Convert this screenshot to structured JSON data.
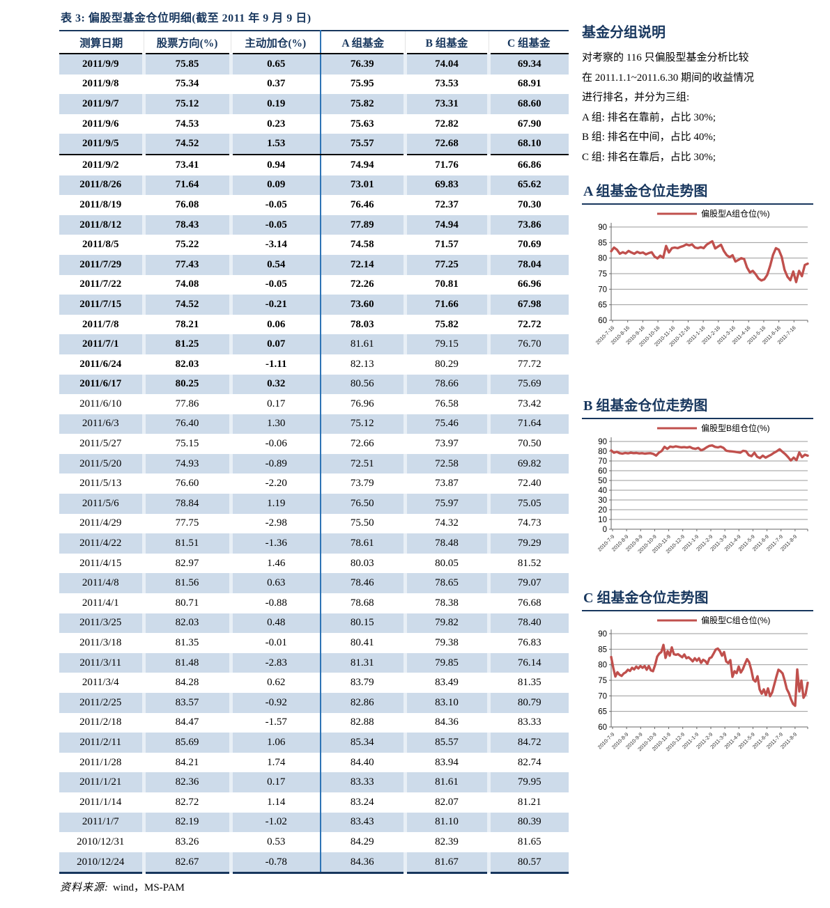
{
  "colors": {
    "navy": "#17365D",
    "stripe_blue": "#CDDBEA",
    "divider_blue": "#2E74B5",
    "line_red": "#C0504D"
  },
  "table": {
    "title": "表 3:  偏股型基金仓位明细(截至 2011 年 9 月 9 日)",
    "columns": [
      "测算日期",
      "股票方向(%)",
      "主动加仓(%)",
      "A 组基金",
      "B 组基金",
      "C 组基金"
    ],
    "rows": [
      [
        "2011/9/9",
        "75.85",
        "0.65",
        "76.39",
        "74.04",
        "69.34"
      ],
      [
        "2011/9/8",
        "75.34",
        "0.37",
        "75.95",
        "73.53",
        "68.91"
      ],
      [
        "2011/9/7",
        "75.12",
        "0.19",
        "75.82",
        "73.31",
        "68.60"
      ],
      [
        "2011/9/6",
        "74.53",
        "0.23",
        "75.63",
        "72.82",
        "67.90"
      ],
      [
        "2011/9/5",
        "74.52",
        "1.53",
        "75.57",
        "72.68",
        "68.10"
      ],
      [
        "2011/9/2",
        "73.41",
        "0.94",
        "74.94",
        "71.76",
        "66.86"
      ],
      [
        "2011/8/26",
        "71.64",
        "0.09",
        "73.01",
        "69.83",
        "65.62"
      ],
      [
        "2011/8/19",
        "76.08",
        "-0.05",
        "76.46",
        "72.37",
        "70.30"
      ],
      [
        "2011/8/12",
        "78.43",
        "-0.05",
        "77.89",
        "74.94",
        "73.86"
      ],
      [
        "2011/8/5",
        "75.22",
        "-3.14",
        "74.58",
        "71.57",
        "70.69"
      ],
      [
        "2011/7/29",
        "77.43",
        "0.54",
        "72.14",
        "77.25",
        "78.04"
      ],
      [
        "2011/7/22",
        "74.08",
        "-0.05",
        "72.26",
        "70.81",
        "66.96"
      ],
      [
        "2011/7/15",
        "74.52",
        "-0.21",
        "73.60",
        "71.66",
        "67.98"
      ],
      [
        "2011/7/8",
        "78.21",
        "0.06",
        "78.03",
        "75.82",
        "72.72"
      ],
      [
        "2011/7/1",
        "81.25",
        "0.07",
        "81.61",
        "79.15",
        "76.70"
      ],
      [
        "2011/6/24",
        "82.03",
        "-1.11",
        "82.13",
        "80.29",
        "77.72"
      ],
      [
        "2011/6/17",
        "80.25",
        "0.32",
        "80.56",
        "78.66",
        "75.69"
      ],
      [
        "2011/6/10",
        "77.86",
        "0.17",
        "76.96",
        "76.58",
        "73.42"
      ],
      [
        "2011/6/3",
        "76.40",
        "1.30",
        "75.12",
        "75.46",
        "71.64"
      ],
      [
        "2011/5/27",
        "75.15",
        "-0.06",
        "72.66",
        "73.97",
        "70.50"
      ],
      [
        "2011/5/20",
        "74.93",
        "-0.89",
        "72.51",
        "72.58",
        "69.82"
      ],
      [
        "2011/5/13",
        "76.60",
        "-2.20",
        "73.79",
        "73.87",
        "72.40"
      ],
      [
        "2011/5/6",
        "78.84",
        "1.19",
        "76.50",
        "75.97",
        "75.05"
      ],
      [
        "2011/4/29",
        "77.75",
        "-2.98",
        "75.50",
        "74.32",
        "74.73"
      ],
      [
        "2011/4/22",
        "81.51",
        "-1.36",
        "78.61",
        "78.48",
        "79.29"
      ],
      [
        "2011/4/15",
        "82.97",
        "1.46",
        "80.03",
        "80.05",
        "81.52"
      ],
      [
        "2011/4/8",
        "81.56",
        "0.63",
        "78.46",
        "78.65",
        "79.07"
      ],
      [
        "2011/4/1",
        "80.71",
        "-0.88",
        "78.68",
        "78.38",
        "76.68"
      ],
      [
        "2011/3/25",
        "82.03",
        "0.48",
        "80.15",
        "79.82",
        "78.40"
      ],
      [
        "2011/3/18",
        "81.35",
        "-0.01",
        "80.41",
        "79.38",
        "76.83"
      ],
      [
        "2011/3/11",
        "81.48",
        "-2.83",
        "81.31",
        "79.85",
        "76.14"
      ],
      [
        "2011/3/4",
        "84.28",
        "0.62",
        "83.79",
        "83.49",
        "81.35"
      ],
      [
        "2011/2/25",
        "83.57",
        "-0.92",
        "82.86",
        "83.10",
        "80.79"
      ],
      [
        "2011/2/18",
        "84.47",
        "-1.57",
        "82.88",
        "84.36",
        "83.33"
      ],
      [
        "2011/2/11",
        "85.69",
        "1.06",
        "85.34",
        "85.57",
        "84.72"
      ],
      [
        "2011/1/28",
        "84.21",
        "1.74",
        "84.40",
        "83.94",
        "82.74"
      ],
      [
        "2011/1/21",
        "82.36",
        "0.17",
        "83.33",
        "81.61",
        "79.95"
      ],
      [
        "2011/1/14",
        "82.72",
        "1.14",
        "83.24",
        "82.07",
        "81.21"
      ],
      [
        "2011/1/7",
        "82.19",
        "-1.02",
        "83.43",
        "81.10",
        "80.39"
      ],
      [
        "2010/12/31",
        "83.26",
        "0.53",
        "84.29",
        "82.39",
        "81.65"
      ],
      [
        "2010/12/24",
        "82.67",
        "-0.78",
        "84.36",
        "81.67",
        "80.57"
      ]
    ]
  },
  "source": {
    "label": "资料来源:",
    "value": "wind，MS-PAM"
  },
  "notes": {
    "heading": "基金分组说明",
    "lines": [
      "对考察的 116 只偏股型基金分析比较",
      "在 2011.1.1~2011.6.30 期间的收益情况",
      "进行排名，并分为三组:",
      "A 组:  排名在靠前，占比 30%;",
      "B 组:  排名在中间，占比 40%;",
      "C 组:  排名在靠后，占比 30%;"
    ]
  },
  "chart_data": [
    {
      "type": "line",
      "title": "A 组基金仓位走势图",
      "legend": "偏股型A组仓位(%)",
      "color": "#C0504D",
      "ylim": [
        60,
        90
      ],
      "ytick_step": 5,
      "grid": true,
      "legend_position": "top",
      "x_labels": [
        "2010-7-16",
        "2010-8-16",
        "2010-9-16",
        "2010-10-16",
        "2010-11-16",
        "2010-12-16",
        "2011-1-16",
        "2011-2-16",
        "2011-3-16",
        "2011-4-16",
        "2011-5-16",
        "2011-6-16",
        "2011-7-16"
      ],
      "values": [
        82.2,
        83.4,
        82.7,
        81.4,
        81.9,
        81.5,
        82.3,
        81.8,
        81.4,
        82.0,
        81.6,
        81.8,
        81.2,
        81.6,
        81.9,
        80.5,
        79.9,
        80.8,
        80.1,
        83.9,
        81.8,
        83.2,
        83.4,
        83.2,
        83.6,
        83.9,
        84.4,
        84.1,
        84.4,
        83.4,
        83.2,
        83.5,
        83.2,
        84.3,
        84.9,
        85.4,
        83.1,
        83.7,
        84.3,
        82.3,
        80.9,
        80.3,
        80.9,
        78.9,
        79.4,
        80.0,
        79.7,
        77.0,
        75.4,
        75.9,
        74.8,
        73.4,
        72.8,
        73.2,
        74.6,
        77.5,
        81.0,
        83.2,
        82.7,
        80.4,
        76.2,
        74.0,
        72.9,
        75.7,
        72.3,
        75.9,
        74.2,
        77.8,
        78.2
      ]
    },
    {
      "type": "line",
      "title": "B 组基金仓位走势图",
      "legend": "偏股型B组仓位(%)",
      "color": "#C0504D",
      "ylim": [
        0,
        90
      ],
      "ytick_step": 10,
      "grid": true,
      "legend_position": "top",
      "x_labels": [
        "2010-7-9",
        "2010-8-9",
        "2010-9-9",
        "2010-10-9",
        "2010-11-9",
        "2010-12-9",
        "2011-1-9",
        "2011-2-9",
        "2011-3-9",
        "2011-4-9",
        "2011-5-9",
        "2011-6-9",
        "2011-7-9",
        "2011-8-9"
      ],
      "values": [
        80.8,
        78.4,
        79.4,
        78.0,
        77.5,
        78.2,
        77.8,
        78.4,
        78.0,
        78.2,
        77.7,
        78.0,
        77.5,
        77.8,
        78.0,
        77.2,
        75.5,
        78.5,
        80.2,
        84.5,
        82.4,
        84.8,
        84.2,
        85.0,
        84.4,
        83.9,
        84.2,
        83.8,
        84.4,
        83.0,
        82.4,
        83.4,
        81.0,
        82.0,
        84.0,
        85.5,
        85.9,
        84.4,
        83.9,
        84.7,
        83.4,
        80.5,
        80.0,
        79.8,
        79.4,
        79.0,
        78.5,
        80.4,
        80.0,
        76.0,
        74.9,
        78.4,
        74.3,
        73.0,
        75.4,
        73.4,
        75.0,
        76.4,
        78.4,
        80.0,
        82.0,
        79.4,
        77.0,
        74.0,
        70.5,
        73.4,
        70.8,
        78.7,
        73.9,
        76.4,
        75.4
      ]
    },
    {
      "type": "line",
      "title": "C 组基金仓位走势图",
      "legend": "偏股型C组仓位(%)",
      "color": "#C0504D",
      "ylim": [
        60,
        90
      ],
      "ytick_step": 5,
      "grid": true,
      "legend_position": "top",
      "x_labels": [
        "2010-7-9",
        "2010-8-9",
        "2010-9-9",
        "2010-10-9",
        "2010-11-9",
        "2010-12-9",
        "2011-1-9",
        "2011-2-9",
        "2011-3-9",
        "2011-4-9",
        "2011-5-9",
        "2011-6-9",
        "2011-7-9",
        "2011-8-9"
      ],
      "values": [
        82.5,
        79.0,
        76.2,
        77.6,
        76.8,
        76.4,
        77.2,
        77.6,
        78.4,
        78.0,
        79.0,
        78.5,
        79.4,
        78.8,
        79.6,
        79.0,
        79.6,
        78.4,
        79.6,
        78.2,
        77.9,
        79.9,
        82.6,
        83.6,
        84.1,
        86.4,
        82.2,
        84.4,
        82.9,
        85.6,
        83.4,
        83.2,
        83.4,
        82.9,
        82.4,
        83.3,
        82.1,
        82.4,
        81.8,
        81.1,
        82.1,
        81.3,
        82.1,
        80.6,
        81.6,
        81.2,
        80.3,
        82.1,
        82.4,
        83.6,
        84.9,
        85.2,
        84.4,
        82.9,
        84.1,
        81.1,
        80.5,
        81.5,
        76.1,
        77.9,
        77.3,
        79.4,
        77.5,
        78.6,
        80.3,
        81.8,
        80.8,
        78.4,
        75.2,
        74.6,
        76.3,
        72.1,
        70.7,
        72.1,
        70.2,
        72.4,
        69.9,
        71.1,
        73.6,
        76.1,
        78.4,
        77.9,
        77.2,
        74.9,
        72.2,
        70.9,
        68.9,
        67.4,
        66.8,
        78.5,
        71.4,
        74.9,
        69.4,
        70.6,
        74.2
      ]
    }
  ]
}
